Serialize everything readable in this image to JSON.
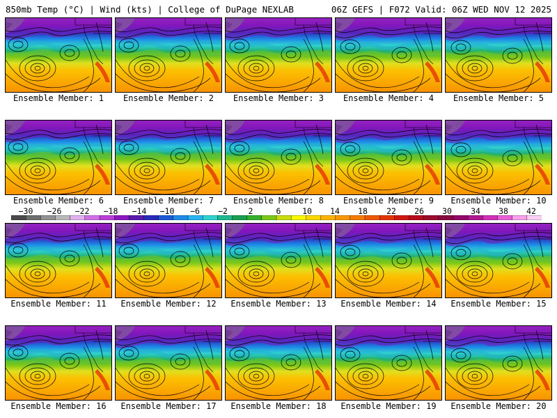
{
  "header": {
    "left_title": "850mb Temp (°C) | Wind (kts) | College of DuPage NEXLAB",
    "right_title": "06Z GEFS | F072 Valid: 06Z WED NOV 12 2025"
  },
  "colorbar": {
    "labels": [
      "−30",
      "−26",
      "−22",
      "−18",
      "−14",
      "−10",
      "−6",
      "−2",
      "2",
      "6",
      "10",
      "14",
      "18",
      "22",
      "26",
      "30",
      "34",
      "38",
      "42"
    ],
    "colors": [
      "#4a4a4a",
      "#6e6e6e",
      "#929292",
      "#b8b8b8",
      "#e0b0f0",
      "#d070e8",
      "#b840d8",
      "#8a18c0",
      "#5a1ab0",
      "#2a2ab8",
      "#1e5ad8",
      "#1e8ae8",
      "#28b4f0",
      "#30d2d0",
      "#20b890",
      "#18a050",
      "#34b02a",
      "#7cc818",
      "#c8dc10",
      "#f8f800",
      "#fcd800",
      "#fcb400",
      "#f89800",
      "#f47c00",
      "#ee5800",
      "#e43400",
      "#d01810",
      "#b80c1c",
      "#9c0c2c",
      "#880840",
      "#900868",
      "#b01890",
      "#d030b8",
      "#e860d8",
      "#f8a0ec",
      "#fcd0f6"
    ]
  },
  "members": [
    {
      "label": "Ensemble Member: 1"
    },
    {
      "label": "Ensemble Member: 2"
    },
    {
      "label": "Ensemble Member: 3"
    },
    {
      "label": "Ensemble Member: 4"
    },
    {
      "label": "Ensemble Member: 5"
    },
    {
      "label": "Ensemble Member: 6"
    },
    {
      "label": "Ensemble Member: 7"
    },
    {
      "label": "Ensemble Member: 8"
    },
    {
      "label": "Ensemble Member: 9"
    },
    {
      "label": "Ensemble Member: 10"
    },
    {
      "label": "Ensemble Member: 11"
    },
    {
      "label": "Ensemble Member: 12"
    },
    {
      "label": "Ensemble Member: 13"
    },
    {
      "label": "Ensemble Member: 14"
    },
    {
      "label": "Ensemble Member: 15"
    },
    {
      "label": "Ensemble Member: 16"
    },
    {
      "label": "Ensemble Member: 17"
    },
    {
      "label": "Ensemble Member: 18"
    },
    {
      "label": "Ensemble Member: 19"
    },
    {
      "label": "Ensemble Member: 20"
    }
  ]
}
